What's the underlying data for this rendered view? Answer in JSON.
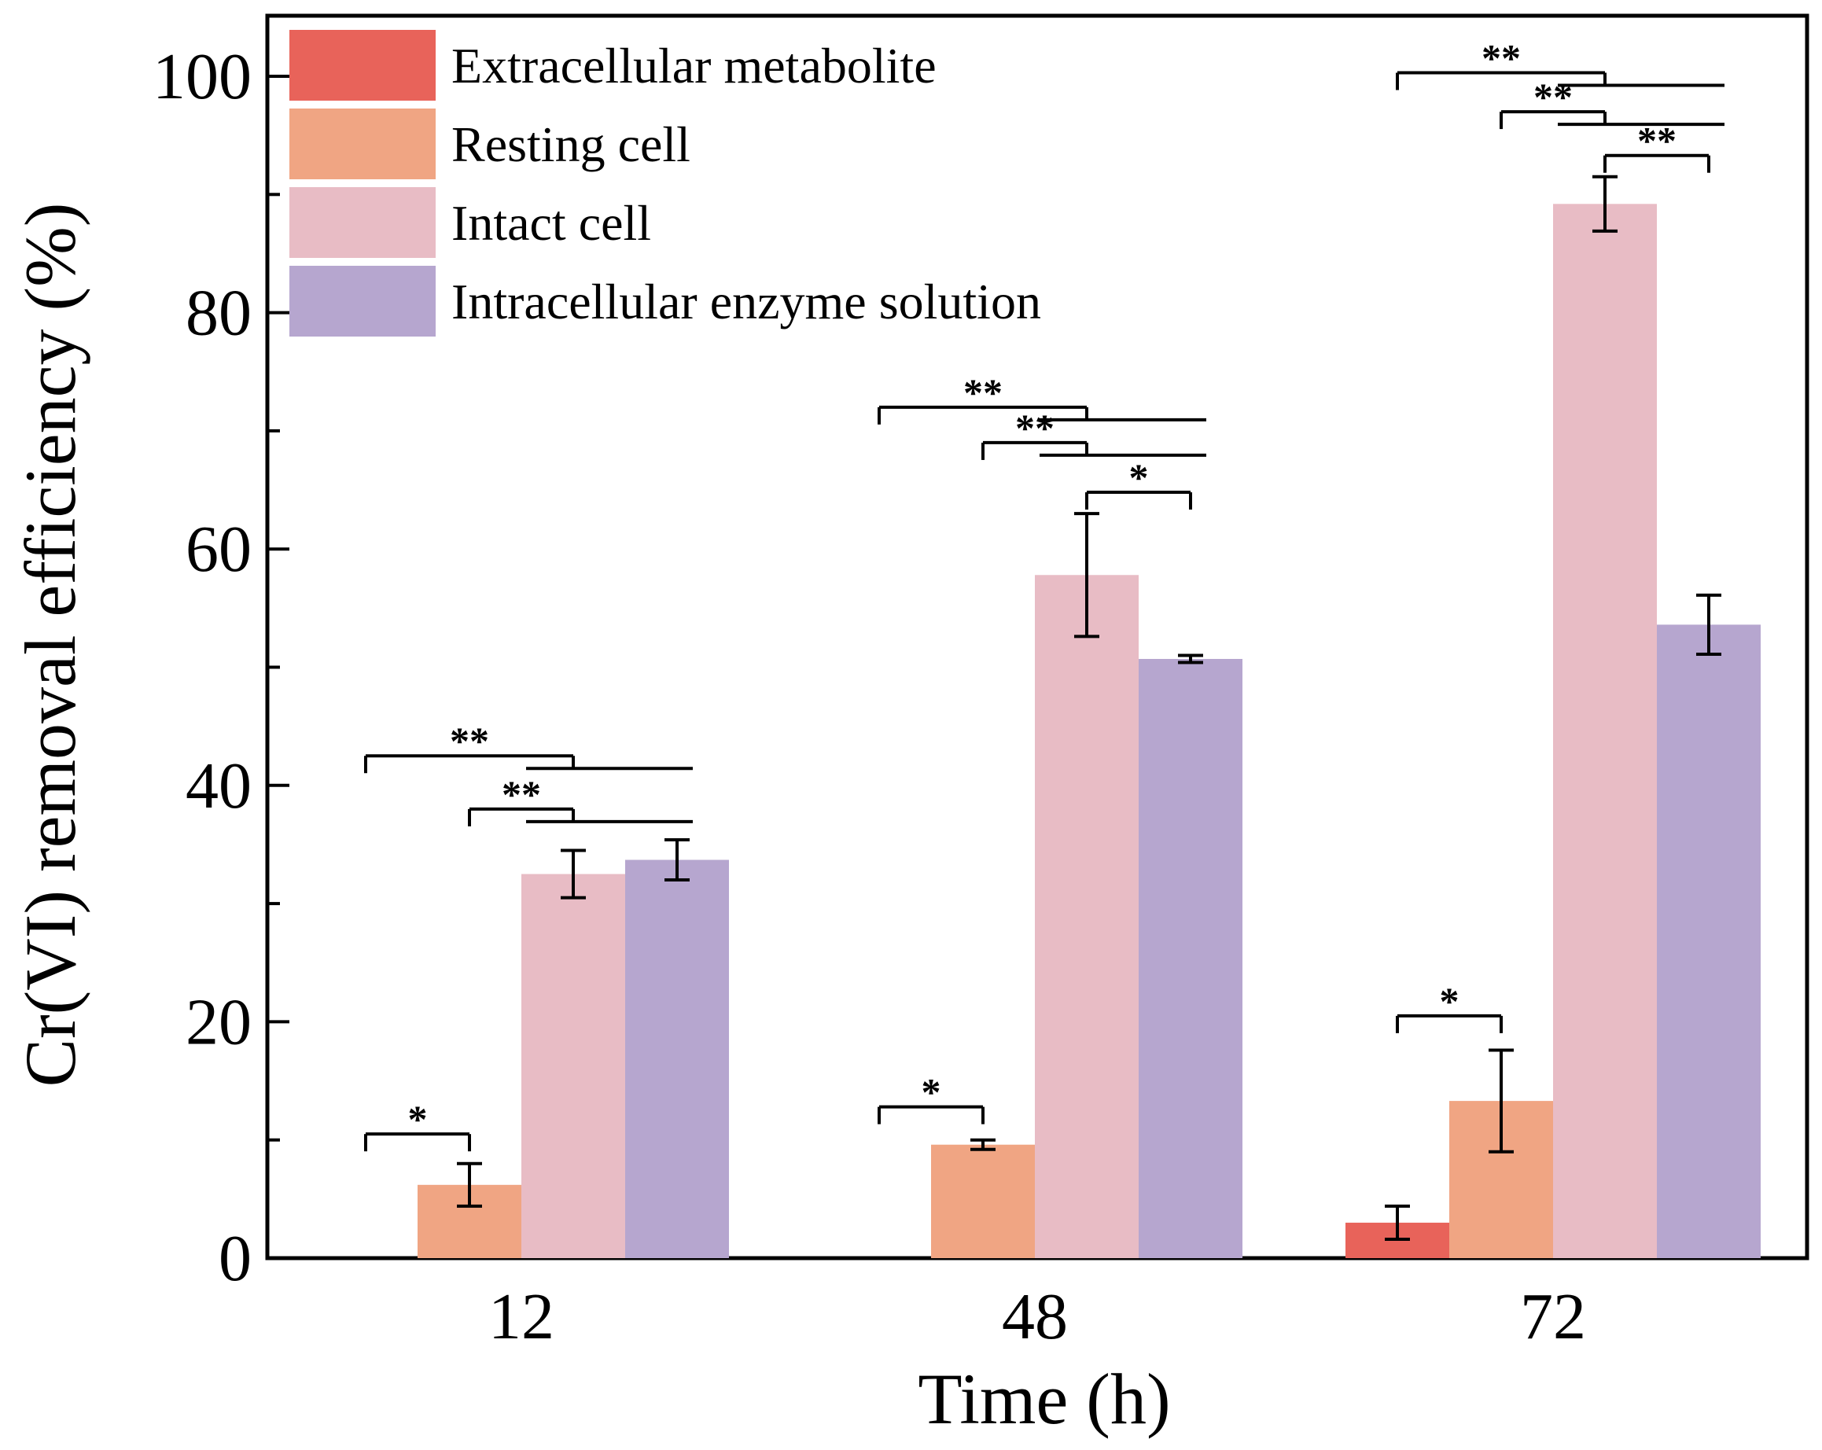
{
  "chart_data": {
    "type": "bar",
    "title": "",
    "xlabel": "Time (h)",
    "ylabel": "Cr(VI) removal efficiency (%)",
    "ylim": [
      0,
      100
    ],
    "yticks": [
      0,
      20,
      40,
      60,
      80,
      100
    ],
    "categories": [
      "12",
      "48",
      "72"
    ],
    "legend_position": "top-left",
    "series": [
      {
        "name": "Extracellular metabolite",
        "color": "#e8635a",
        "values": [
          0,
          0,
          3.0
        ],
        "errors": [
          0,
          0,
          1.4
        ]
      },
      {
        "name": "Resting cell",
        "color": "#f0a583",
        "values": [
          6.2,
          9.6,
          13.3
        ],
        "errors": [
          1.8,
          0.4,
          4.3
        ]
      },
      {
        "name": "Intact cell",
        "color": "#e8bcc5",
        "values": [
          32.5,
          57.8,
          89.2
        ],
        "errors": [
          2.0,
          5.2,
          2.3
        ]
      },
      {
        "name": "Intracellular enzyme solution",
        "color": "#b6a6cf",
        "values": [
          33.7,
          50.7,
          53.6
        ],
        "errors": [
          1.7,
          0.3,
          2.5
        ]
      }
    ],
    "significance": [
      {
        "category": 0,
        "label": "*",
        "from": 0,
        "to": 1,
        "level": 10.5
      },
      {
        "category": 0,
        "label": "**",
        "from": 0,
        "to": [
          2,
          3
        ],
        "level": 42.5
      },
      {
        "category": 0,
        "label": "**",
        "from": 1,
        "to": [
          2,
          3
        ],
        "level": 38.0
      },
      {
        "category": 1,
        "label": "*",
        "from": 0,
        "to": 1,
        "level": 12.8
      },
      {
        "category": 1,
        "label": "**",
        "from": 0,
        "to": [
          2,
          3
        ],
        "level": 72.0
      },
      {
        "category": 1,
        "label": "**",
        "from": 1,
        "to": [
          2,
          3
        ],
        "level": 69.0
      },
      {
        "category": 1,
        "label": "*",
        "from": 2,
        "to": 3,
        "level": 64.8
      },
      {
        "category": 2,
        "label": "*",
        "from": 0,
        "to": 1,
        "level": 20.5
      },
      {
        "category": 2,
        "label": "**",
        "from": 0,
        "to": [
          2,
          3
        ],
        "level": 100.3
      },
      {
        "category": 2,
        "label": "**",
        "from": 1,
        "to": [
          2,
          3
        ],
        "level": 97.0
      },
      {
        "category": 2,
        "label": "**",
        "from": 2,
        "to": 3,
        "level": 93.3
      }
    ]
  }
}
